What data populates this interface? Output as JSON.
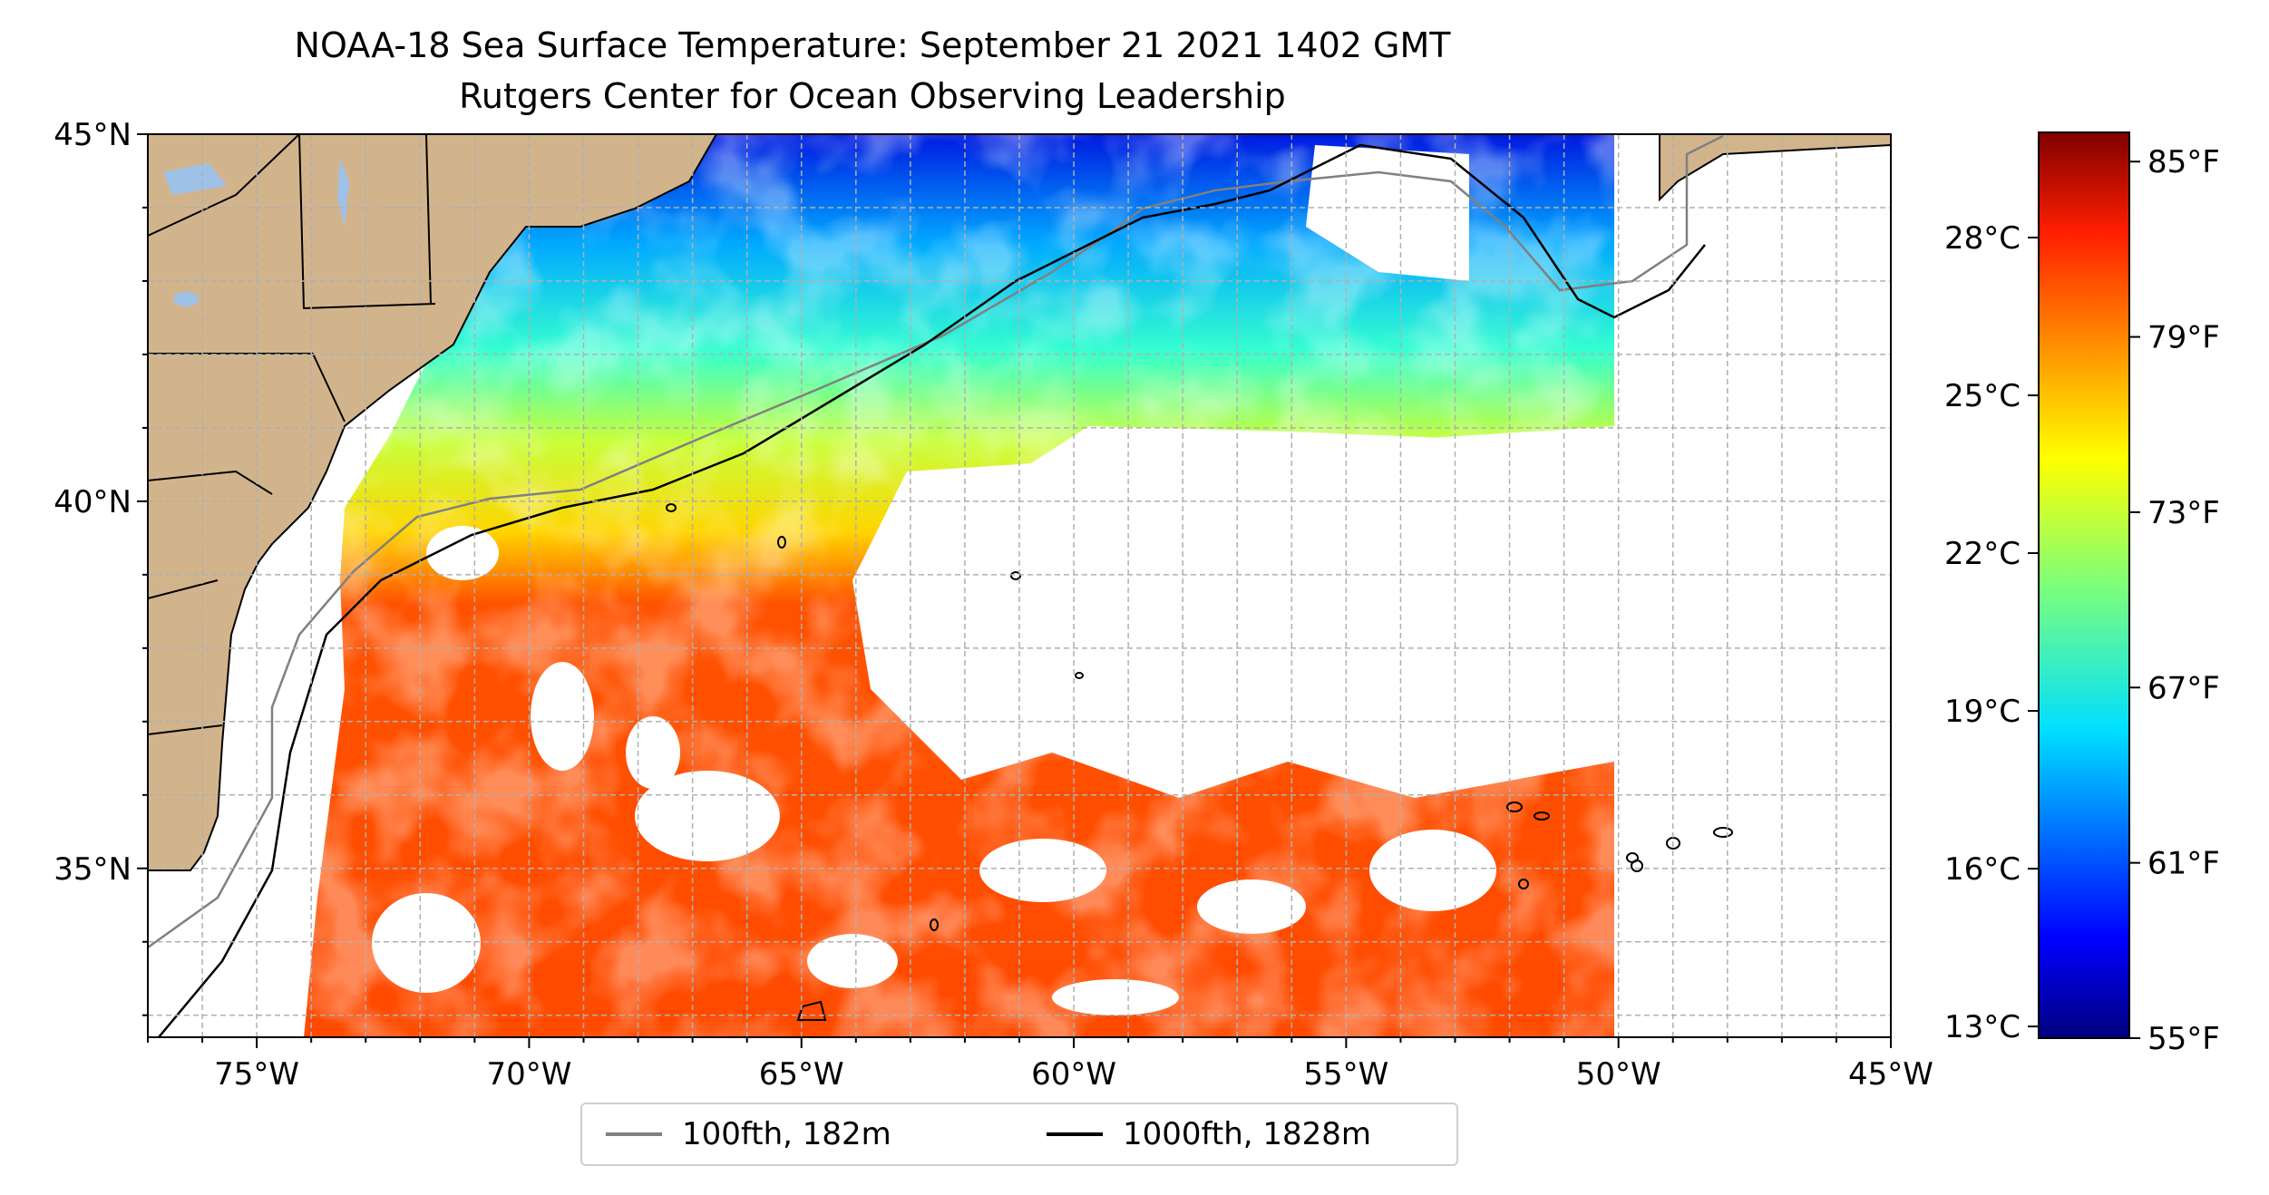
{
  "title": {
    "line1": "NOAA-18 Sea Surface Temperature: September 21 2021 1402 GMT",
    "line2": "Rutgers Center for Ocean Observing Leadership"
  },
  "map": {
    "lon_range": [
      -77,
      -45
    ],
    "lat_range": [
      32.7,
      45
    ],
    "lon_ticks": [
      "75°W",
      "70°W",
      "65°W",
      "60°W",
      "55°W",
      "50°W",
      "45°W"
    ],
    "lat_ticks": [
      "45°N",
      "40°N",
      "35°N"
    ],
    "gridlines": "dashed",
    "land_color": "#d2b48c",
    "lake_color": "#9ec1e8",
    "ocean_background": "#ffffff"
  },
  "colorbar": {
    "colormap": "jet",
    "fahrenheit_range": [
      55,
      86
    ],
    "celsius_labels": [
      "28°C",
      "25°C",
      "22°C",
      "19°C",
      "16°C",
      "13°C"
    ],
    "fahrenheit_labels": [
      "85°F",
      "79°F",
      "73°F",
      "67°F",
      "61°F",
      "55°F"
    ]
  },
  "legend": {
    "items": [
      {
        "label": "100fth, 182m",
        "color": "#808080"
      },
      {
        "label": "1000fth, 1828m",
        "color": "#000000"
      }
    ]
  }
}
